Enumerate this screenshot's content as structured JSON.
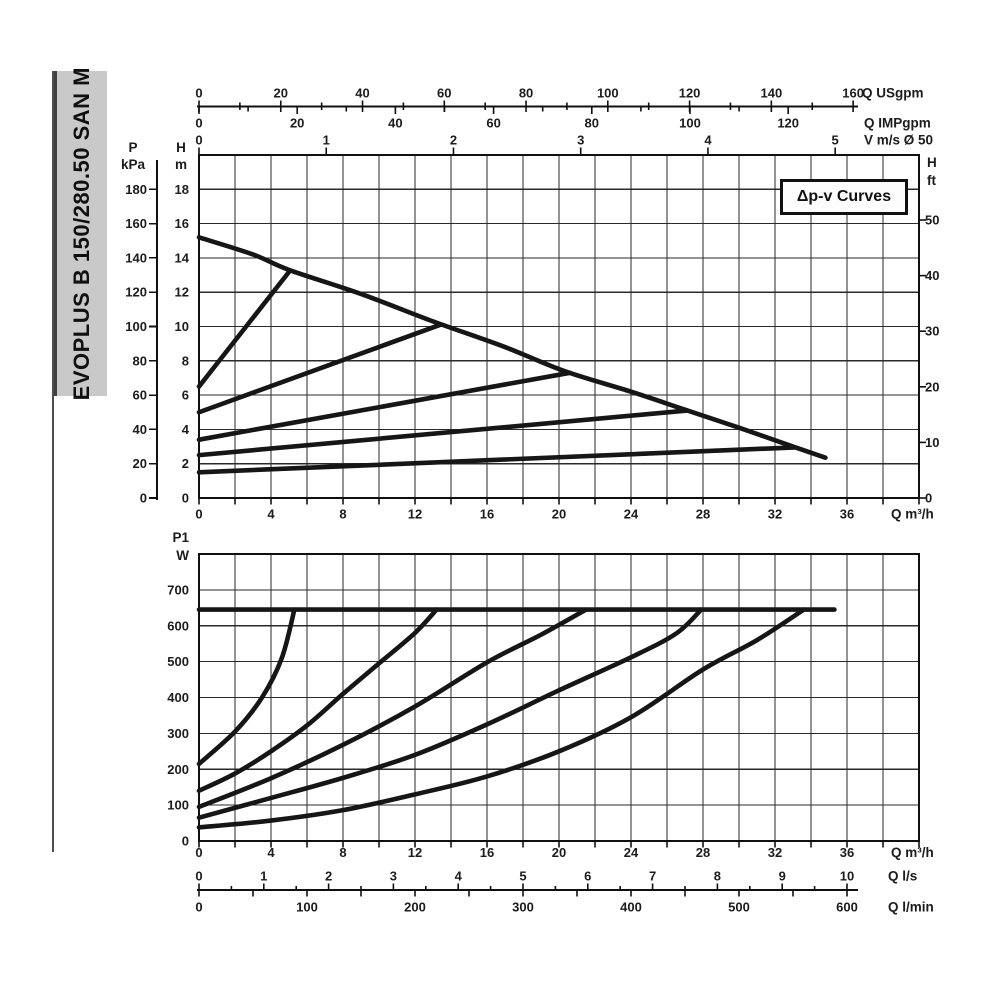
{
  "page": {
    "background": "#ffffff"
  },
  "colors": {
    "curve": "#161616",
    "grid": "#2a2a2a",
    "border": "#101010",
    "text": "#1c1c1c",
    "sidebar_bg": "#c9c9c9",
    "sidebar_rule": "#4d4d4d"
  },
  "sidebar": {
    "title": "EVOPLUS B 150/280.50 SAN M"
  },
  "annotation_box": {
    "label": "Δp-v Curves"
  },
  "chart_data": [
    {
      "id": "head-chart",
      "type": "line",
      "title": "Δp-v Curves",
      "x_axis": {
        "unit_label": "Q m³/h",
        "ticks": [
          0,
          4,
          8,
          12,
          16,
          20,
          24,
          28,
          32,
          36
        ],
        "range": [
          0,
          40
        ],
        "grid_step": 2
      },
      "y_axis": {
        "header": [
          "H",
          "m"
        ],
        "ticks": [
          0,
          2,
          4,
          6,
          8,
          10,
          12,
          14,
          16,
          18
        ],
        "range": [
          0,
          20
        ],
        "grid_step": 2
      },
      "kpa_axis": {
        "header": [
          "P",
          "kPa"
        ],
        "ticks": [
          0,
          20,
          40,
          60,
          80,
          100,
          120,
          140,
          160,
          180
        ]
      },
      "ft_axis": {
        "header": [
          "H",
          "ft"
        ],
        "ticks": [
          0,
          10,
          20,
          30,
          40,
          50
        ]
      },
      "usgpm_axis": {
        "unit_label": "Q USgpm",
        "ticks": [
          0,
          20,
          40,
          60,
          80,
          100,
          120,
          140,
          160
        ],
        "minor_step": 10
      },
      "impgpm_axis": {
        "unit_label": "Q IMPgpm",
        "ticks": [
          0,
          20,
          40,
          60,
          80,
          100,
          120
        ],
        "minor_step": 10
      },
      "velocity_axis": {
        "unit_label": "V m/s Ø 50",
        "ticks": [
          0,
          1,
          2,
          3,
          4,
          5
        ]
      },
      "series": [
        {
          "name": "max-speed-curve",
          "points": [
            [
              0,
              15.2
            ],
            [
              3,
              14.2
            ],
            [
              5,
              13.3
            ],
            [
              9,
              11.9
            ],
            [
              13,
              10.3
            ],
            [
              17,
              8.8
            ],
            [
              20.3,
              7.4
            ],
            [
              24,
              6.2
            ],
            [
              27,
              5.15
            ],
            [
              30,
              4.1
            ],
            [
              33,
              3.0
            ],
            [
              34.8,
              2.35
            ]
          ]
        },
        {
          "name": "dpv-line-13m",
          "points": [
            [
              0,
              6.5
            ],
            [
              5.05,
              13.25
            ]
          ]
        },
        {
          "name": "dpv-line-10m",
          "points": [
            [
              0,
              5.0
            ],
            [
              13.4,
              10.1
            ]
          ]
        },
        {
          "name": "dpv-line-7m",
          "points": [
            [
              0,
              3.4
            ],
            [
              20.6,
              7.3
            ]
          ]
        },
        {
          "name": "dpv-line-5m",
          "points": [
            [
              0,
              2.5
            ],
            [
              27.1,
              5.1
            ]
          ]
        },
        {
          "name": "dpv-line-3m",
          "points": [
            [
              0,
              1.5
            ],
            [
              33.1,
              2.95
            ]
          ]
        }
      ]
    },
    {
      "id": "power-chart",
      "type": "line",
      "x_axis": {
        "unit_label": "Q m³/h",
        "ticks": [
          0,
          4,
          8,
          12,
          16,
          20,
          24,
          28,
          32,
          36
        ],
        "range": [
          0,
          40
        ],
        "grid_step": 2
      },
      "y_axis": {
        "header": [
          "P1",
          "W"
        ],
        "ticks": [
          0,
          100,
          200,
          300,
          400,
          500,
          600,
          700
        ],
        "range": [
          0,
          800
        ],
        "grid_step": 100
      },
      "ls_axis": {
        "unit_label": "Q l/s",
        "ticks": [
          0,
          1,
          2,
          3,
          4,
          5,
          6,
          7,
          8,
          9,
          10
        ],
        "minor_step": 0.5
      },
      "lmin_axis": {
        "unit_label": "Q l/min",
        "ticks": [
          0,
          100,
          200,
          300,
          400,
          500,
          600
        ],
        "minor_step": 50
      },
      "series": [
        {
          "name": "power-limit-line",
          "points": [
            [
              0,
              645
            ],
            [
              35.3,
              645
            ]
          ]
        },
        {
          "name": "power-curve-max",
          "points": [
            [
              0,
              215
            ],
            [
              2,
              305
            ],
            [
              3.5,
              400
            ],
            [
              4.6,
              510
            ],
            [
              5.3,
              645
            ]
          ]
        },
        {
          "name": "power-curve-2",
          "points": [
            [
              0,
              140
            ],
            [
              2,
              188
            ],
            [
              4,
              250
            ],
            [
              6,
              322
            ],
            [
              8,
              410
            ],
            [
              10,
              495
            ],
            [
              12,
              580
            ],
            [
              13.2,
              645
            ]
          ]
        },
        {
          "name": "power-curve-3",
          "points": [
            [
              0,
              95
            ],
            [
              4,
              175
            ],
            [
              8,
              268
            ],
            [
              12,
              375
            ],
            [
              16,
              498
            ],
            [
              19,
              575
            ],
            [
              21.5,
              645
            ]
          ]
        },
        {
          "name": "power-curve-4",
          "points": [
            [
              0,
              65
            ],
            [
              4,
              120
            ],
            [
              8,
              176
            ],
            [
              12,
              240
            ],
            [
              16,
              325
            ],
            [
              20,
              420
            ],
            [
              24,
              512
            ],
            [
              26.5,
              578
            ],
            [
              27.9,
              645
            ]
          ]
        },
        {
          "name": "power-curve-5",
          "points": [
            [
              0,
              38
            ],
            [
              4,
              57
            ],
            [
              8,
              86
            ],
            [
              12,
              130
            ],
            [
              16,
              180
            ],
            [
              20,
              250
            ],
            [
              24,
              345
            ],
            [
              28,
              478
            ],
            [
              31,
              560
            ],
            [
              33.6,
              645
            ]
          ]
        }
      ]
    }
  ]
}
